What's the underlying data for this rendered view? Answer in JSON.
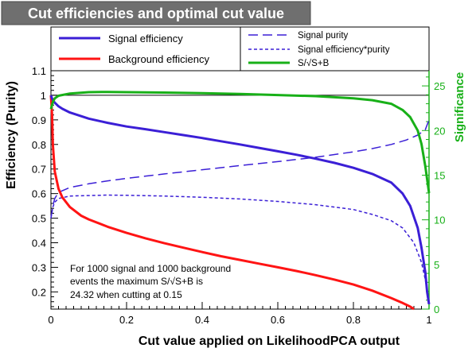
{
  "chart_data": {
    "type": "line",
    "title": "Cut efficiencies and optimal cut value",
    "xlabel": "Cut value applied on LikelihoodPCA output",
    "ylabel": "Efficiency (Purity)",
    "y2label": "Significance",
    "xlim": [
      0,
      1
    ],
    "ylim": [
      0.13,
      1.1
    ],
    "y2lim": [
      0,
      26.7
    ],
    "x_ticks": [
      0,
      0.2,
      0.4,
      0.6,
      0.8,
      1
    ],
    "x_tick_labels": [
      "0",
      "0.2",
      "0.4",
      "0.6",
      "0.8",
      "1"
    ],
    "y_ticks": [
      0.2,
      0.3,
      0.4,
      0.5,
      0.6,
      0.7,
      0.8,
      0.9,
      1,
      1.1
    ],
    "y_tick_labels": [
      "0.2",
      "0.3",
      "0.4",
      "0.5",
      "0.6",
      "0.7",
      "0.8",
      "0.9",
      "1",
      "1.1"
    ],
    "y2_ticks": [
      0,
      5,
      10,
      15,
      20,
      25
    ],
    "y2_tick_labels": [
      "0",
      "5",
      "10",
      "15",
      "20",
      "25"
    ],
    "grid": false,
    "reference_line_y": 1,
    "legend_position": "top",
    "legend": [
      {
        "label": "Signal efficiency",
        "color": "#3b1fd6",
        "style": "solid",
        "width": 3
      },
      {
        "label": "Background efficiency",
        "color": "#ff1414",
        "style": "solid",
        "width": 3
      },
      {
        "label": "Signal purity",
        "color": "#3b1fd6",
        "style": "longdash",
        "width": 1.5
      },
      {
        "label": "Signal efficiency*purity",
        "color": "#3b1fd6",
        "style": "shortdash",
        "width": 1.5
      },
      {
        "label": "S/√S+B",
        "color": "#18b018",
        "style": "solid",
        "width": 3
      }
    ],
    "annotation": {
      "line1": "For 1000 signal and 1000 background",
      "line2": "events the maximum S/√S+B is",
      "line3": "24.32 when cutting at  0.15"
    },
    "series": [
      {
        "name": "Signal efficiency",
        "axis": "left",
        "color": "#3b1fd6",
        "width": 3,
        "x": [
          0,
          0.002,
          0.005,
          0.01,
          0.02,
          0.03,
          0.05,
          0.08,
          0.1,
          0.15,
          0.2,
          0.25,
          0.3,
          0.35,
          0.4,
          0.45,
          0.5,
          0.55,
          0.6,
          0.65,
          0.7,
          0.75,
          0.8,
          0.85,
          0.9,
          0.93,
          0.95,
          0.97,
          0.98,
          0.99,
          0.995,
          1
        ],
        "y": [
          1,
          0.99,
          0.98,
          0.97,
          0.955,
          0.945,
          0.93,
          0.915,
          0.905,
          0.888,
          0.873,
          0.862,
          0.85,
          0.838,
          0.826,
          0.813,
          0.8,
          0.786,
          0.772,
          0.758,
          0.742,
          0.725,
          0.705,
          0.68,
          0.645,
          0.6,
          0.55,
          0.46,
          0.38,
          0.28,
          0.2,
          0.15
        ]
      },
      {
        "name": "Background efficiency",
        "axis": "left",
        "color": "#ff1414",
        "width": 3,
        "x": [
          0,
          0.003,
          0.005,
          0.01,
          0.02,
          0.03,
          0.05,
          0.08,
          0.1,
          0.15,
          0.2,
          0.25,
          0.3,
          0.35,
          0.4,
          0.45,
          0.5,
          0.55,
          0.6,
          0.65,
          0.7,
          0.75,
          0.8,
          0.85,
          0.9,
          0.93,
          0.95,
          0.96
        ],
        "y": [
          1,
          0.92,
          0.8,
          0.69,
          0.62,
          0.585,
          0.545,
          0.51,
          0.495,
          0.465,
          0.44,
          0.418,
          0.398,
          0.38,
          0.362,
          0.345,
          0.33,
          0.315,
          0.3,
          0.285,
          0.268,
          0.25,
          0.23,
          0.205,
          0.175,
          0.155,
          0.14,
          0.13
        ]
      },
      {
        "name": "Signal purity",
        "axis": "left",
        "color": "#3b1fd6",
        "width": 1.5,
        "x": [
          0,
          0.005,
          0.01,
          0.02,
          0.05,
          0.1,
          0.15,
          0.2,
          0.3,
          0.4,
          0.5,
          0.6,
          0.7,
          0.8,
          0.85,
          0.9,
          0.94,
          0.97,
          0.99,
          1
        ],
        "y": [
          0.5,
          0.55,
          0.58,
          0.605,
          0.625,
          0.64,
          0.652,
          0.662,
          0.68,
          0.697,
          0.714,
          0.73,
          0.748,
          0.77,
          0.783,
          0.8,
          0.818,
          0.838,
          0.86,
          0.9
        ]
      },
      {
        "name": "Signal efficiency*purity",
        "axis": "left",
        "color": "#3b1fd6",
        "width": 1.5,
        "x": [
          0,
          0.005,
          0.01,
          0.02,
          0.05,
          0.1,
          0.15,
          0.2,
          0.3,
          0.4,
          0.5,
          0.6,
          0.7,
          0.8,
          0.85,
          0.9,
          0.93,
          0.96,
          0.98,
          0.99,
          1
        ],
        "y": [
          0.5,
          0.545,
          0.565,
          0.58,
          0.59,
          0.592,
          0.594,
          0.593,
          0.59,
          0.585,
          0.578,
          0.568,
          0.555,
          0.535,
          0.515,
          0.49,
          0.46,
          0.4,
          0.32,
          0.25,
          0.15
        ]
      },
      {
        "name": "S/√S+B",
        "axis": "right",
        "color": "#18b018",
        "width": 3,
        "x": [
          0,
          0.005,
          0.01,
          0.02,
          0.05,
          0.1,
          0.15,
          0.2,
          0.3,
          0.4,
          0.5,
          0.6,
          0.7,
          0.8,
          0.85,
          0.9,
          0.93,
          0.95,
          0.97,
          0.98,
          0.99,
          1
        ],
        "y": [
          22.4,
          23.2,
          23.6,
          23.9,
          24.15,
          24.3,
          24.32,
          24.3,
          24.25,
          24.18,
          24.1,
          23.98,
          23.85,
          23.6,
          23.4,
          23.0,
          22.3,
          21.5,
          20.0,
          18.5,
          16.0,
          13.0
        ]
      }
    ]
  }
}
